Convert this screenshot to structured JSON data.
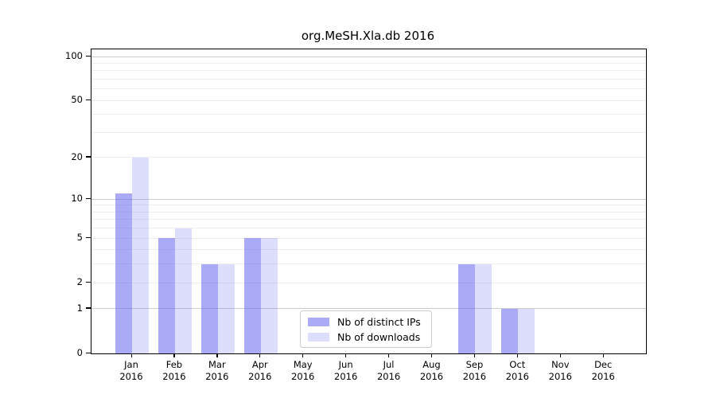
{
  "title": "org.MeSH.Xla.db 2016",
  "chart_data": {
    "type": "bar",
    "categories": [
      "Jan",
      "Feb",
      "Mar",
      "Apr",
      "May",
      "Jun",
      "Jul",
      "Aug",
      "Sep",
      "Oct",
      "Nov",
      "Dec"
    ],
    "category_year": "2016",
    "series": [
      {
        "name": "Nb of distinct IPs",
        "color": "rgba(100,100,240,0.55)",
        "values": [
          11,
          5,
          3,
          5,
          0,
          0,
          0,
          0,
          3,
          1,
          0,
          0
        ]
      },
      {
        "name": "Nb of downloads",
        "color": "rgba(100,100,240,0.22)",
        "values": [
          20,
          6,
          3,
          5,
          0,
          0,
          0,
          0,
          3,
          1,
          0,
          0
        ]
      }
    ],
    "yscale": "log1p",
    "ylim": [
      0,
      100
    ],
    "yticks": [
      0,
      1,
      2,
      5,
      10,
      20,
      50,
      100
    ],
    "grid_major": [
      1,
      10,
      100
    ],
    "grid_minor": [
      2,
      3,
      4,
      5,
      6,
      7,
      8,
      9,
      20,
      30,
      40,
      50,
      60,
      70,
      80,
      90
    ],
    "grid_major_color": "#cccccc",
    "grid_minor_color": "#ededed",
    "legend_position": "lower center",
    "axis_color": "#000000",
    "background_color": "#ffffff"
  }
}
